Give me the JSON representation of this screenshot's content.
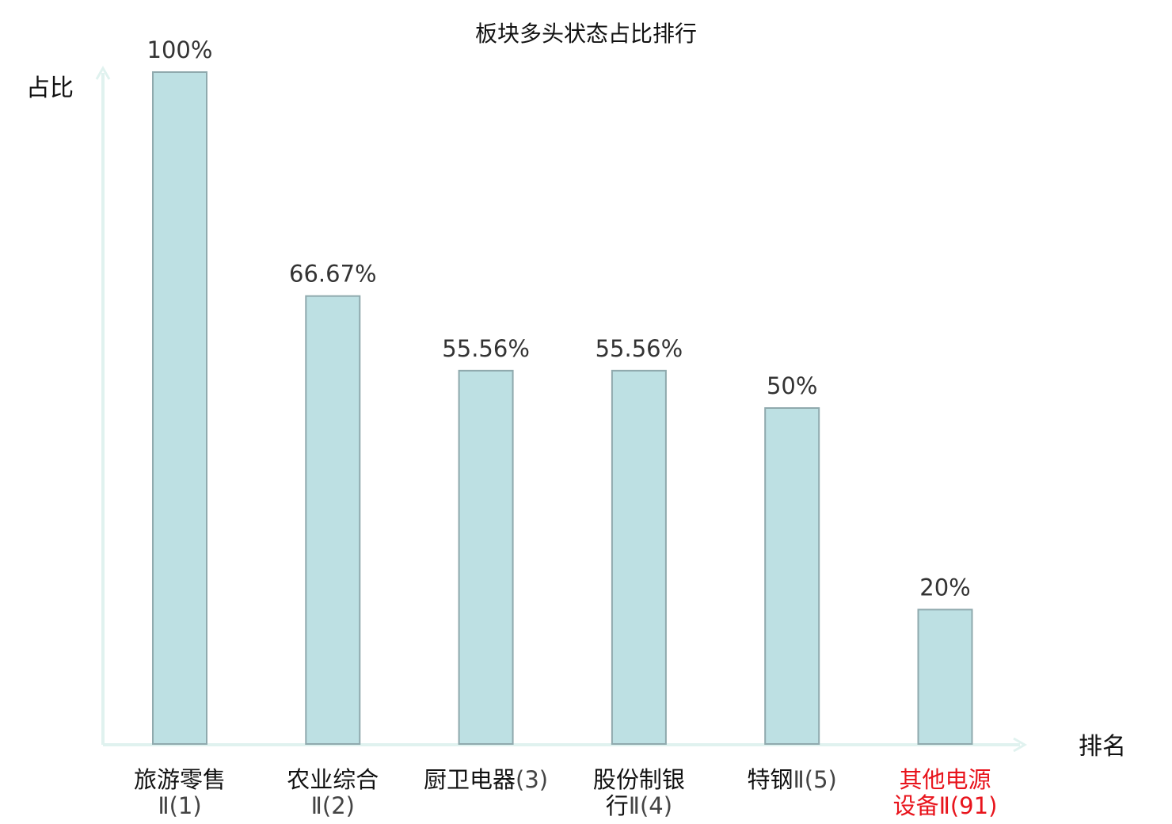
{
  "chart_data": {
    "type": "bar",
    "title": "板块多头状态占比排行",
    "ylabel": "占比",
    "xlabel": "排名",
    "ylim": [
      0,
      100
    ],
    "grid": false,
    "categories": [
      {
        "name": [
          "旅游零售"
        ],
        "rank_line": [
          "Ⅱ(1)"
        ],
        "highlight": false
      },
      {
        "name": [
          "农业综合"
        ],
        "rank_line": [
          "Ⅱ(2)"
        ],
        "highlight": false
      },
      {
        "name": [
          "厨卫电器"
        ],
        "rank_line": [
          "(3)"
        ],
        "inline": true,
        "highlight": false
      },
      {
        "name": [
          "股份制银",
          "行"
        ],
        "rank_line": [
          "Ⅱ(4)"
        ],
        "highlight": false
      },
      {
        "name": [
          "特钢"
        ],
        "rank_line": [
          "Ⅱ(5)"
        ],
        "inline": true,
        "highlight": false
      },
      {
        "name": [
          "其他电源",
          "设备"
        ],
        "rank_line": [
          "Ⅱ(91)"
        ],
        "highlight": true
      }
    ],
    "values": [
      100,
      66.67,
      55.56,
      55.56,
      50,
      20
    ],
    "value_labels": [
      "100%",
      "66.67%",
      "55.56%",
      "55.56%",
      "50%",
      "20%"
    ],
    "colors": {
      "bar_fill": "#bde0e3",
      "bar_stroke": "#8fa9ad",
      "axis": "#e0f2ef",
      "highlight_text": "#e8141c",
      "normal_text": "#111111"
    }
  }
}
